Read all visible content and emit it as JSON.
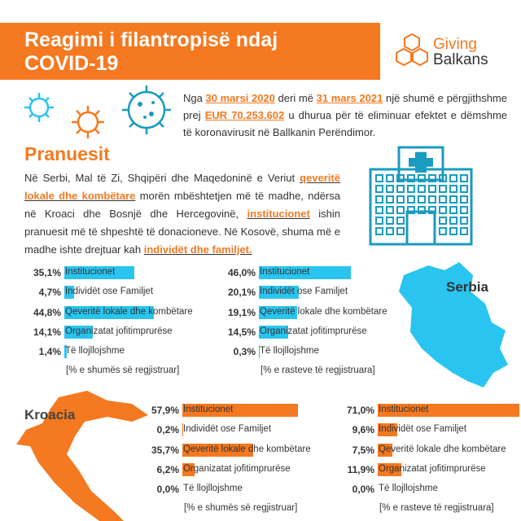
{
  "header": {
    "title": [
      "Reagimi i filantropisë ndaj",
      "COVID-19"
    ],
    "logo": [
      "Giving",
      "Balkans"
    ]
  },
  "intro": [
    {
      "text": "Nga "
    },
    {
      "text": "30 marsi 2020",
      "em": true
    },
    {
      "text": " deri më "
    },
    {
      "text": "31 mars 2021",
      "em": true
    },
    {
      "text": " një shumë e përgjithshme prej "
    },
    {
      "text": "EUR 70.253.602",
      "em": true
    },
    {
      "text": " u dhurua për të eliminuar efektet e dëmshme të koronavirusit në Ballkanin Perëndimor."
    }
  ],
  "section": {
    "title": "Pranuesit",
    "text": [
      {
        "text": "Në Serbi, Mal të Zi, Shqipëri dhe Maqedoninë e Veriut "
      },
      {
        "text": "qeveritë lokale dhe kombëtare",
        "em": true
      },
      {
        "text": " morën mbështetjen më të madhe, ndërsa në Kroaci dhe Bosnjë dhe Hercegovinë, "
      },
      {
        "text": "institucionet",
        "em": true
      },
      {
        "text": " ishin pranuesit më të shpeshtë të donacioneve. Në Kosovë, shuma më e madhe ishte drejtuar kah "
      },
      {
        "text": "individët dhe familjet.",
        "em": true
      }
    ]
  },
  "maps": [
    {
      "label": "Serbia"
    },
    {
      "label": "Kroacia"
    }
  ],
  "chart_data": [
    {
      "type": "bar",
      "orientation": "horizontal",
      "color": "#29c5f0",
      "note": "[% e shumës së regjistruar]",
      "categories": [
        "Institucionet",
        "Individët ose Familjet",
        "Qeveritë lokale dhe kombëtare",
        "Organizatat jofitimprurëse",
        "Të llojllojshme"
      ],
      "values": [
        35.1,
        4.7,
        44.8,
        14.1,
        1.4
      ],
      "value_labels": [
        "35,1%",
        "4,7%",
        "44,8%",
        "14,1%",
        "1,4%"
      ]
    },
    {
      "type": "bar",
      "orientation": "horizontal",
      "color": "#29c5f0",
      "note": "[% e rasteve të regjistruara]",
      "categories": [
        "Institucionet",
        "Individët ose Familjet",
        "Qeveritë lokale dhe kombëtare",
        "Organizatat jofitimprurëse",
        "Të llojllojshme"
      ],
      "values": [
        46.0,
        20.1,
        19.1,
        14.5,
        0.3
      ],
      "value_labels": [
        "46,0%",
        "20,1%",
        "19,1%",
        "14,5%",
        "0,3%"
      ]
    },
    {
      "type": "bar",
      "orientation": "horizontal",
      "color": "#f47920",
      "note": "[% e shumës së regjistruar]",
      "categories": [
        "Institucionet",
        "Individët ose Familjet",
        "Qeveritë lokale dhe kombëtare",
        "Organizatat jofitimprurëse",
        "Të llojllojshme"
      ],
      "values": [
        57.9,
        0.2,
        35.7,
        6.2,
        0.0
      ],
      "value_labels": [
        "57,9%",
        "0,2%",
        "35,7%",
        "6,2%",
        "0,0%"
      ]
    },
    {
      "type": "bar",
      "orientation": "horizontal",
      "color": "#f47920",
      "note": "[% e rasteve të regjistruara]",
      "categories": [
        "Institucionet",
        "Individët ose Familjet",
        "Qeveritë lokale dhe kombëtare",
        "Organizatat jofitimprurëse",
        "Të llojllojshme"
      ],
      "values": [
        71.0,
        9.6,
        7.5,
        11.9,
        0.0
      ],
      "value_labels": [
        "71,0%",
        "9,6%",
        "7,5%",
        "11,9%",
        "0,0%"
      ]
    }
  ]
}
